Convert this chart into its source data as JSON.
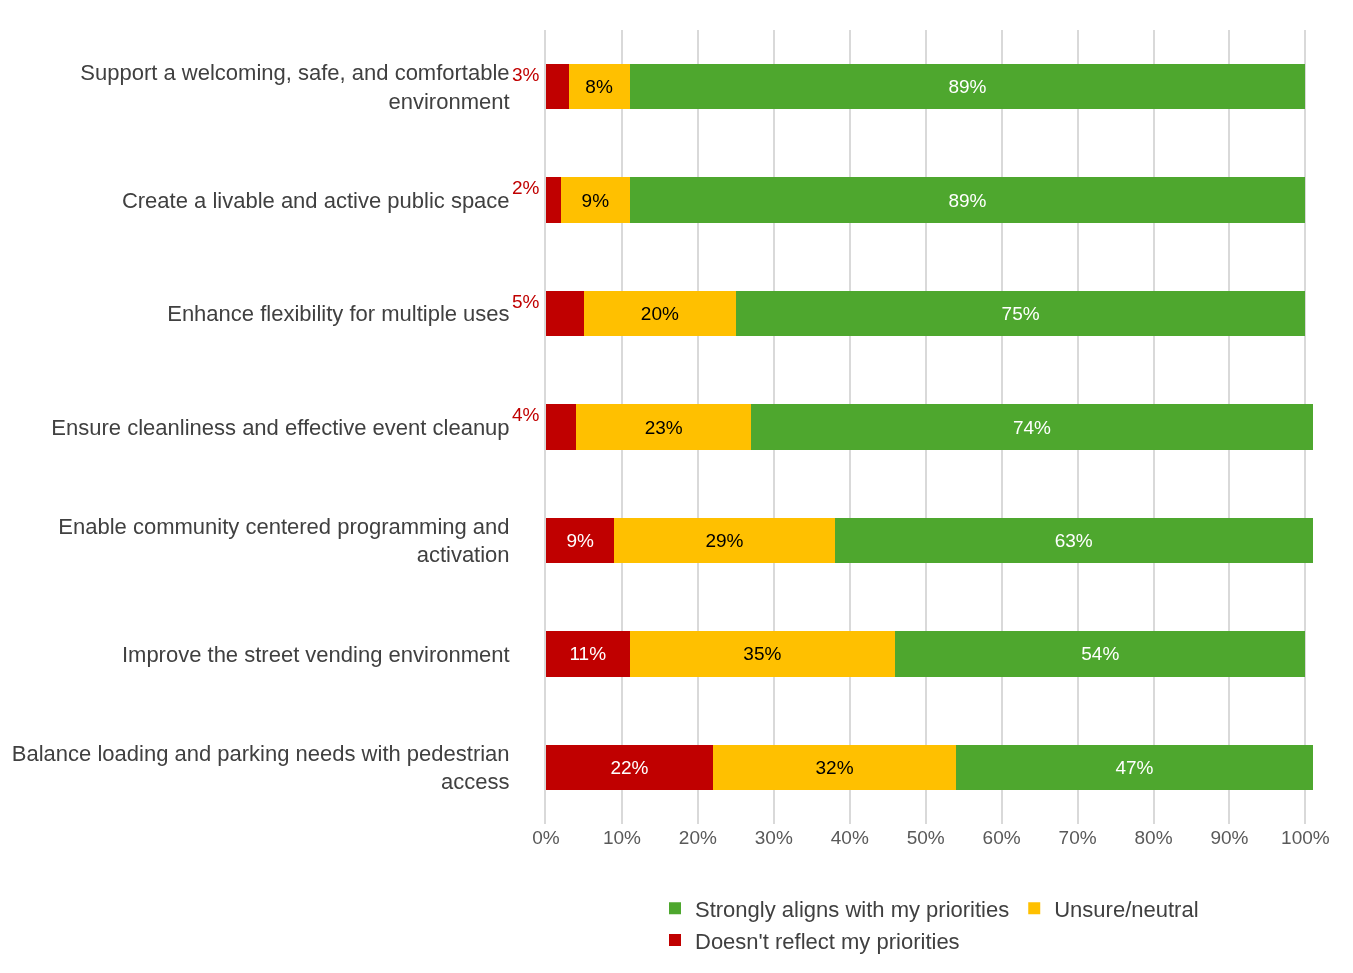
{
  "chart_data": {
    "type": "bar",
    "orientation": "horizontal",
    "stacked": true,
    "categories": [
      "Support a welcoming, safe, and comfortable environment",
      "Create a livable and active public space",
      "Enhance flexibility for multiple uses",
      "Ensure cleanliness and effective event cleanup",
      "Enable community centered programming and activation",
      "Improve the street vending environment",
      "Balance loading and parking needs with pedestrian access"
    ],
    "series": [
      {
        "name": "Doesn't reflect my priorities",
        "color": "#c00000",
        "values": [
          3,
          2,
          5,
          4,
          9,
          11,
          22
        ],
        "value_labels": [
          "3%",
          "2%",
          "5%",
          "4%",
          "9%",
          "11%",
          "22%"
        ]
      },
      {
        "name": "Unsure/neutral",
        "color": "#ffc000",
        "values": [
          8,
          9,
          20,
          23,
          29,
          35,
          32
        ],
        "value_labels": [
          "8%",
          "9%",
          "20%",
          "23%",
          "29%",
          "35%",
          "32%"
        ]
      },
      {
        "name": "Strongly aligns with my priorities",
        "color": "#4ea72e",
        "values": [
          89,
          89,
          75,
          74,
          63,
          54,
          47
        ],
        "value_labels": [
          "89%",
          "89%",
          "75%",
          "74%",
          "63%",
          "54%",
          "47%"
        ]
      }
    ],
    "xlim": [
      0,
      101
    ],
    "xticks": [
      {
        "value": 0,
        "label": "0%"
      },
      {
        "value": 10,
        "label": "10%"
      },
      {
        "value": 20,
        "label": "20%"
      },
      {
        "value": 30,
        "label": "30%"
      },
      {
        "value": 40,
        "label": "40%"
      },
      {
        "value": 50,
        "label": "50%"
      },
      {
        "value": 60,
        "label": "60%"
      },
      {
        "value": 70,
        "label": "70%"
      },
      {
        "value": 80,
        "label": "80%"
      },
      {
        "value": 90,
        "label": "90%"
      },
      {
        "value": 100,
        "label": "100%"
      }
    ],
    "grid": "x",
    "legend": "bottom"
  }
}
